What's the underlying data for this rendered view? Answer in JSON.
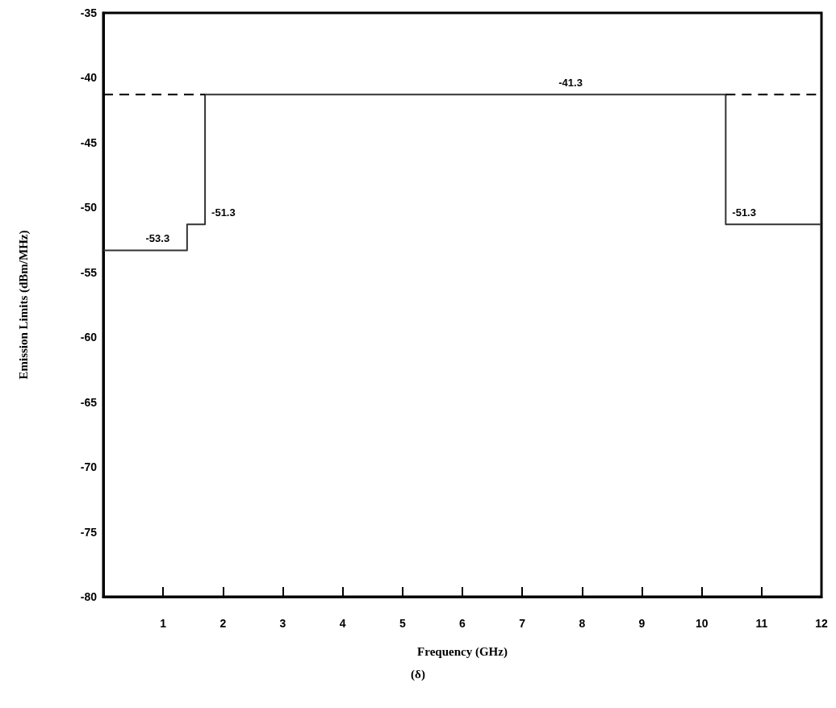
{
  "chart_data": {
    "type": "step",
    "xlabel": "Frequency (GHz)",
    "ylabel": "Emission Limits (dBm/MHz)",
    "xlim": [
      0,
      12
    ],
    "xticks": [
      1,
      2,
      3,
      4,
      5,
      6,
      7,
      8,
      9,
      10,
      11,
      12
    ],
    "ylim": [
      -80,
      -35
    ],
    "yticks": [
      -80,
      -75,
      -70,
      -65,
      -60,
      -55,
      -50,
      -45,
      -40,
      -35
    ],
    "grid": false,
    "marker": "none",
    "series": [
      {
        "type": "step",
        "color": "#333333",
        "line_style": "solid",
        "x": [
          0,
          1.4,
          1.7,
          10.4,
          12
        ],
        "values": [
          -53.3,
          -51.3,
          -41.3,
          -51.3,
          -51.3
        ]
      },
      {
        "type": "line",
        "color": "#000000",
        "line_style": "dashed",
        "x": [
          0,
          1.7,
          5,
          10.4,
          12
        ],
        "values": [
          -41.3,
          -41.3,
          null,
          -41.3,
          -41.3
        ]
      }
    ],
    "annotations": [
      {
        "text": "-41.3",
        "x": 7.5,
        "y": -41.3
      },
      {
        "text": "-51.3",
        "x": 1.7,
        "y": -51.3
      },
      {
        "text": "-53.3",
        "x": 0.6,
        "y": -53.3
      },
      {
        "text": "-51.3",
        "x": 10.4,
        "y": -51.3
      },
      "(δ)"
    ]
  }
}
